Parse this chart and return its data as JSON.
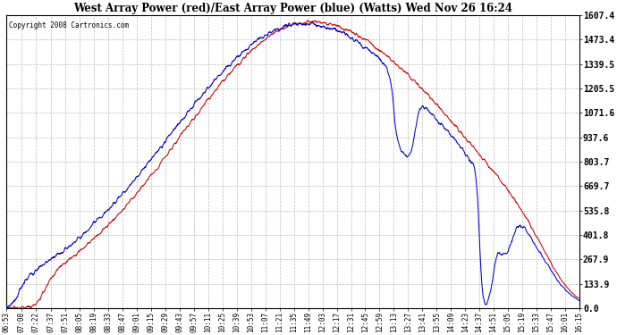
{
  "title": "West Array Power (red)/East Array Power (blue) (Watts) Wed Nov 26 16:24",
  "copyright": "Copyright 2008 Cartronics.com",
  "yticks": [
    0.0,
    133.9,
    267.9,
    401.8,
    535.8,
    669.7,
    803.7,
    937.6,
    1071.6,
    1205.5,
    1339.5,
    1473.4,
    1607.4
  ],
  "ymax": 1607.4,
  "ymin": 0.0,
  "bg_color": "#ffffff",
  "plot_bg_color": "#ffffff",
  "grid_color": "#bbbbbb",
  "line_color_red": "#cc0000",
  "line_color_blue": "#0000cc",
  "xtick_labels": [
    "06:53",
    "07:08",
    "07:22",
    "07:37",
    "07:51",
    "08:05",
    "08:19",
    "08:33",
    "08:47",
    "09:01",
    "09:15",
    "09:29",
    "09:43",
    "09:57",
    "10:11",
    "10:25",
    "10:39",
    "10:53",
    "11:07",
    "11:21",
    "11:35",
    "11:49",
    "12:03",
    "12:17",
    "12:31",
    "12:45",
    "12:59",
    "13:13",
    "13:27",
    "13:41",
    "13:55",
    "14:09",
    "14:23",
    "14:37",
    "14:51",
    "15:05",
    "15:19",
    "15:33",
    "15:47",
    "16:01",
    "16:15"
  ]
}
